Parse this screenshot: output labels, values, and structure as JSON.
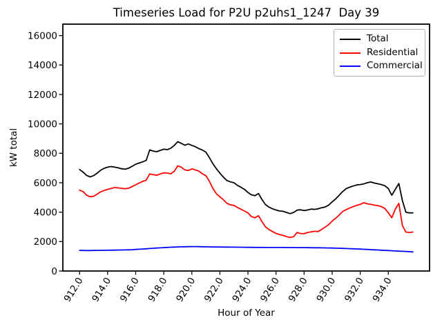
{
  "title": "Timeseries Load for P2U p2uhs1_1247  Day 39",
  "chart_data": {
    "type": "line",
    "title": "Timeseries Load for P2U p2uhs1_1247  Day 39",
    "xlabel": "Hour of Year",
    "ylabel": "kW total",
    "xlim": [
      910.81,
      936.94
    ],
    "ylim": [
      0,
      16780
    ],
    "grid": false,
    "legend_position": "upper right",
    "xticks": [
      912,
      914,
      916,
      918,
      920,
      922,
      924,
      926,
      928,
      930,
      932,
      934
    ],
    "xtick_labels": [
      "912.0",
      "914.0",
      "916.0",
      "918.0",
      "920.0",
      "922.0",
      "924.0",
      "926.0",
      "928.0",
      "930.0",
      "932.0",
      "934.0"
    ],
    "yticks": [
      0,
      2000,
      4000,
      6000,
      8000,
      10000,
      12000,
      14000,
      16000
    ],
    "ytick_labels": [
      "0",
      "2000",
      "4000",
      "6000",
      "8000",
      "10000",
      "12000",
      "14000",
      "16000"
    ],
    "x": [
      912.0,
      912.25,
      912.5,
      912.75,
      913.0,
      913.25,
      913.5,
      913.75,
      914.0,
      914.25,
      914.5,
      914.75,
      915.0,
      915.25,
      915.5,
      915.75,
      916.0,
      916.25,
      916.5,
      916.75,
      917.0,
      917.25,
      917.5,
      917.75,
      918.0,
      918.25,
      918.5,
      918.75,
      919.0,
      919.25,
      919.5,
      919.75,
      920.0,
      920.25,
      920.5,
      920.75,
      921.0,
      921.25,
      921.5,
      921.75,
      922.0,
      922.25,
      922.5,
      922.75,
      923.0,
      923.25,
      923.5,
      923.75,
      924.0,
      924.25,
      924.5,
      924.75,
      925.0,
      925.25,
      925.5,
      925.75,
      926.0,
      926.25,
      926.5,
      926.75,
      927.0,
      927.25,
      927.5,
      927.75,
      928.0,
      928.25,
      928.5,
      928.75,
      929.0,
      929.25,
      929.5,
      929.75,
      930.0,
      930.25,
      930.5,
      930.75,
      931.0,
      931.25,
      931.5,
      931.75,
      932.0,
      932.25,
      932.5,
      932.75,
      933.0,
      933.25,
      933.5,
      933.75,
      934.0,
      934.25,
      934.5,
      934.75,
      935.0,
      935.25,
      935.5,
      935.75
    ],
    "series": [
      {
        "name": "Total",
        "color": "#000000",
        "values": [
          6900,
          6720,
          6500,
          6400,
          6480,
          6650,
          6850,
          6980,
          7060,
          7100,
          7060,
          7010,
          6950,
          6920,
          6990,
          7120,
          7260,
          7340,
          7420,
          7520,
          8230,
          8150,
          8110,
          8200,
          8280,
          8250,
          8350,
          8540,
          8790,
          8680,
          8550,
          8640,
          8540,
          8450,
          8320,
          8220,
          8080,
          7700,
          7300,
          6950,
          6650,
          6380,
          6150,
          6060,
          6000,
          5820,
          5690,
          5550,
          5340,
          5180,
          5120,
          5270,
          4850,
          4520,
          4340,
          4230,
          4150,
          4080,
          4060,
          3980,
          3900,
          3980,
          4140,
          4160,
          4110,
          4150,
          4210,
          4190,
          4230,
          4300,
          4350,
          4480,
          4700,
          4900,
          5150,
          5400,
          5600,
          5700,
          5780,
          5850,
          5880,
          5920,
          6000,
          6050,
          5980,
          5930,
          5880,
          5800,
          5600,
          5150,
          5550,
          5950,
          4800,
          4000,
          3950,
          3950
        ]
      },
      {
        "name": "Residential",
        "color": "#ff0000",
        "values": [
          5500,
          5400,
          5150,
          5050,
          5080,
          5220,
          5380,
          5470,
          5550,
          5610,
          5670,
          5650,
          5620,
          5590,
          5630,
          5740,
          5860,
          5980,
          6090,
          6180,
          6600,
          6550,
          6510,
          6600,
          6670,
          6660,
          6610,
          6780,
          7150,
          7060,
          6870,
          6830,
          6940,
          6870,
          6790,
          6610,
          6480,
          6100,
          5620,
          5250,
          5040,
          4840,
          4600,
          4500,
          4460,
          4320,
          4200,
          4080,
          3950,
          3700,
          3620,
          3760,
          3350,
          3000,
          2820,
          2680,
          2560,
          2480,
          2420,
          2340,
          2280,
          2330,
          2620,
          2550,
          2540,
          2620,
          2660,
          2700,
          2680,
          2820,
          2980,
          3150,
          3400,
          3580,
          3800,
          4050,
          4170,
          4280,
          4380,
          4460,
          4530,
          4640,
          4570,
          4530,
          4480,
          4450,
          4380,
          4250,
          3950,
          3620,
          4200,
          4600,
          3100,
          2650,
          2620,
          2650
        ]
      },
      {
        "name": "Commercial",
        "color": "#0000ff",
        "values": [
          1400,
          1395,
          1390,
          1390,
          1395,
          1400,
          1400,
          1405,
          1410,
          1415,
          1420,
          1425,
          1430,
          1435,
          1440,
          1450,
          1465,
          1480,
          1495,
          1510,
          1530,
          1545,
          1560,
          1575,
          1590,
          1605,
          1615,
          1625,
          1635,
          1645,
          1650,
          1655,
          1660,
          1660,
          1655,
          1650,
          1645,
          1640,
          1635,
          1630,
          1630,
          1625,
          1625,
          1620,
          1620,
          1618,
          1615,
          1612,
          1610,
          1608,
          1605,
          1605,
          1602,
          1600,
          1600,
          1600,
          1600,
          1600,
          1598,
          1595,
          1595,
          1592,
          1590,
          1590,
          1588,
          1585,
          1582,
          1580,
          1578,
          1575,
          1570,
          1565,
          1560,
          1552,
          1545,
          1538,
          1530,
          1520,
          1510,
          1500,
          1490,
          1478,
          1465,
          1452,
          1440,
          1428,
          1415,
          1402,
          1390,
          1378,
          1365,
          1352,
          1340,
          1328,
          1315,
          1300
        ]
      }
    ]
  }
}
